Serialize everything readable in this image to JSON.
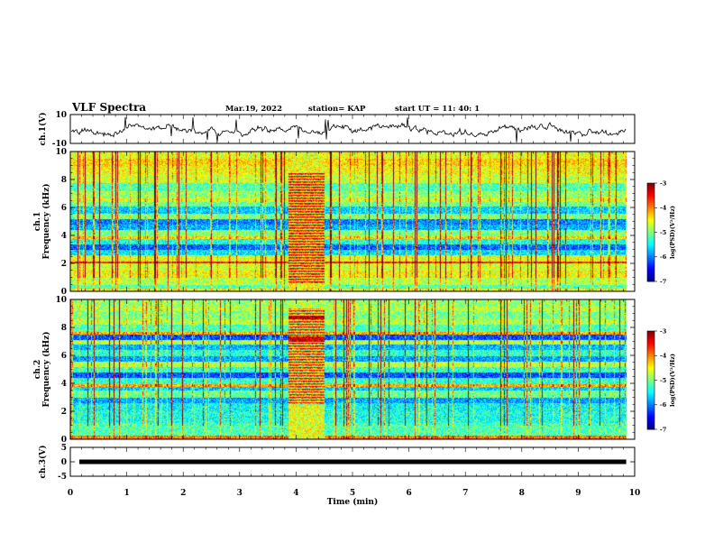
{
  "header": {
    "title": "VLF Spectra",
    "date": "Mar.19, 2022",
    "station": "station= KAP",
    "start": "start UT =  11: 40: 1"
  },
  "chart_data": [
    {
      "type": "line",
      "ylabel": "ch.1(V)",
      "ylim": [
        -10,
        10
      ],
      "yticks": [
        10,
        -10
      ],
      "xlim": [
        0,
        10
      ],
      "note": "noisy waveform oscillating around 0 V"
    },
    {
      "type": "heatmap",
      "ylabel": "ch.1\nFrequency (kHz)",
      "ylim": [
        0,
        10
      ],
      "yticks": [
        0,
        2,
        4,
        6,
        8,
        10
      ],
      "xlim": [
        0,
        10
      ],
      "data_extent_min": 9.85,
      "burst_interval_min": [
        3.85,
        4.5
      ],
      "colorbar": {
        "label": "log(PSD)(V²/Hz)",
        "range": [
          -7,
          -3
        ],
        "ticks": [
          -3,
          -4,
          -5,
          -6,
          -7
        ]
      }
    },
    {
      "type": "heatmap",
      "ylabel": "ch.2\nFrequency (kHz)",
      "ylim": [
        0,
        10
      ],
      "yticks": [
        0,
        2,
        4,
        6,
        8,
        10
      ],
      "xlim": [
        0,
        10
      ],
      "data_extent_min": 9.85,
      "burst_interval_min": [
        3.85,
        4.5
      ],
      "colorbar": {
        "label": "log(PSD)(V²/Hz)",
        "range": [
          -7,
          -3
        ],
        "ticks": [
          -3,
          -4,
          -5,
          -6,
          -7
        ]
      }
    },
    {
      "type": "line",
      "ylabel": "ch.3(V)",
      "ylim": [
        -5,
        5
      ],
      "yticks": [
        5,
        0,
        -5
      ],
      "xlim": [
        0,
        10
      ],
      "xlabel": "Time (min)",
      "xticks": [
        0,
        1,
        2,
        3,
        4,
        5,
        6,
        7,
        8,
        9,
        10
      ],
      "note": "flat thick trace near 0 V"
    }
  ]
}
